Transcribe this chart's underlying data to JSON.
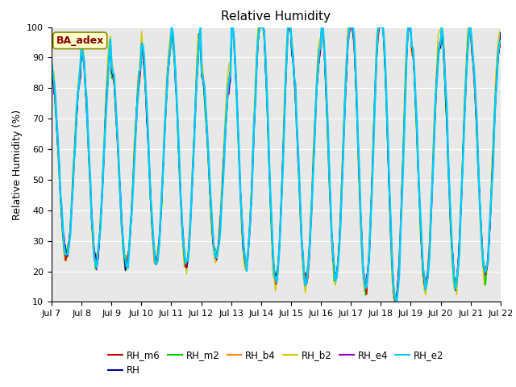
{
  "title": "Relative Humidity",
  "ylabel": "Relative Humidity (%)",
  "ylim": [
    10,
    100
  ],
  "yticks": [
    10,
    20,
    30,
    40,
    50,
    60,
    70,
    80,
    90,
    100
  ],
  "xtick_labels": [
    "Jul 7",
    "Jul 8",
    "Jul 9",
    "Jul 10",
    "Jul 11",
    "Jul 12",
    "Jul 13",
    "Jul 14",
    "Jul 15",
    "Jul 16",
    "Jul 17",
    "Jul 18",
    "Jul 19",
    "Jul 20",
    "Jul 21",
    "Jul 22"
  ],
  "annotation_text": "BA_adex",
  "annotation_bg": "#ffffcc",
  "annotation_fg": "#8b0000",
  "series_colors": {
    "RH_m6": "#cc0000",
    "RH": "#000099",
    "RH_m2": "#00cc00",
    "RH_b4": "#ff8800",
    "RH_b2": "#cccc00",
    "RH_e4": "#9900cc",
    "RH_e2": "#00ccff"
  },
  "series_order": [
    "RH_b2",
    "RH_e4",
    "RH_b4",
    "RH_m2",
    "RH",
    "RH_m6",
    "RH_e2"
  ],
  "legend_order": [
    "RH_m6",
    "RH",
    "RH_m2",
    "RH_b4",
    "RH_b2",
    "RH_e4",
    "RH_e2"
  ],
  "fig_bg": "#ffffff",
  "plot_bg": "#e8e8e8",
  "grid_color": "#ffffff",
  "title_fontsize": 11,
  "label_fontsize": 9,
  "tick_fontsize": 8
}
